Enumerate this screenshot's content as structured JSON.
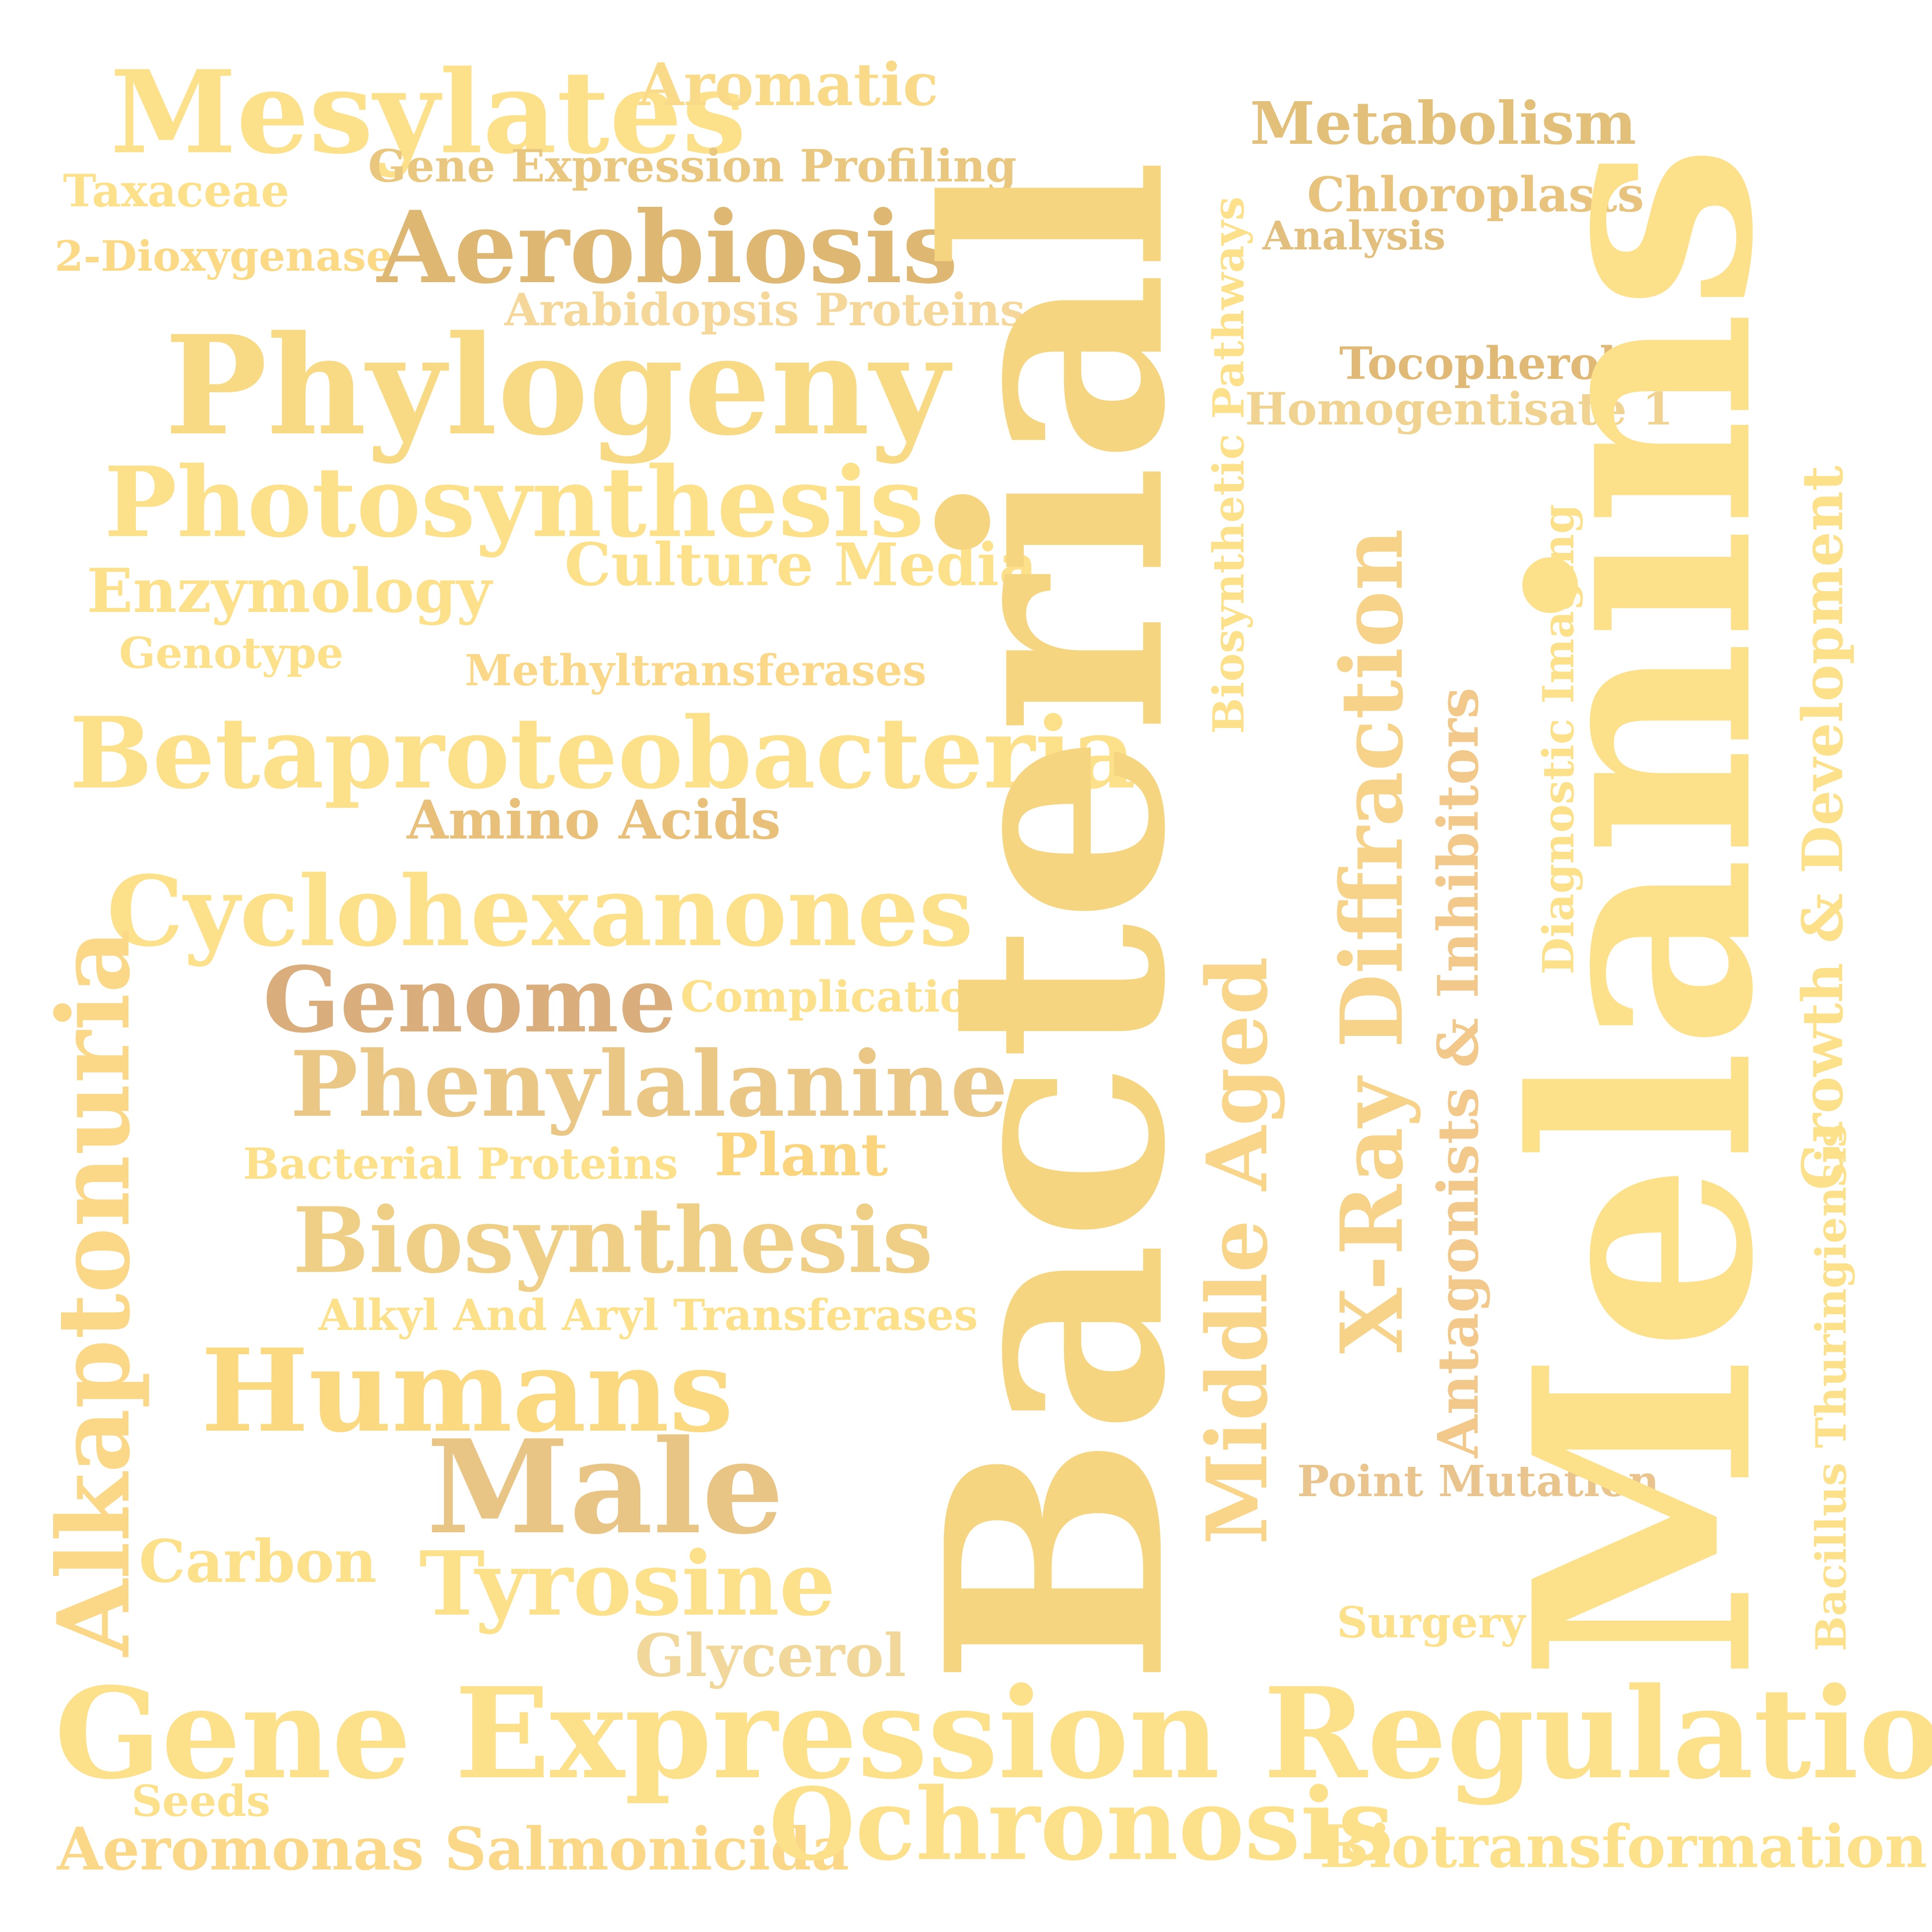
{
  "words": {
    "melanins": {
      "text": "Melanins",
      "color": "#fde08a"
    },
    "bacterial": {
      "text": "Bacterial",
      "color": "#f6d580"
    },
    "gene_expression_regulation": {
      "text": "Gene Expression Regulation",
      "color": "#fde08a"
    },
    "phylogeny": {
      "text": "Phylogeny",
      "color": "#f8da84"
    },
    "mesylates": {
      "text": "Mesylates",
      "color": "#fde08a"
    },
    "aromatic": {
      "text": "Aromatic",
      "color": "#f9da88"
    },
    "metabolism": {
      "text": "Metabolism",
      "color": "#e2c07a"
    },
    "gene_expression_profiling": {
      "text": "Gene Expression Profiling",
      "color": "#e9c77e"
    },
    "taxaceae": {
      "text": "Taxaceae",
      "color": "#fde08a"
    },
    "chloroplasts": {
      "text": "Chloroplasts",
      "color": "#e7c37e"
    },
    "analysis": {
      "text": "Analysis",
      "color": "#e2bf7c"
    },
    "dioxygenase": {
      "text": "2-Dioxygenase",
      "color": "#fbd985"
    },
    "aerobiosis": {
      "text": "Aerobiosis",
      "color": "#deb872"
    },
    "arabidopsis_proteins": {
      "text": "Arabidopsis Proteins",
      "color": "#f6d79a"
    },
    "tocopherols": {
      "text": "Tocopherols",
      "color": "#e0b976"
    },
    "homogentisate": {
      "text": "Homogentisate 1",
      "color": "#f0d390"
    },
    "biosynthetic_pathways": {
      "text": "Biosynthetic Pathways",
      "color": "#fde08a"
    },
    "photosynthesis": {
      "text": "Photosynthesis",
      "color": "#fde08a"
    },
    "culture_media": {
      "text": "Culture Media",
      "color": "#fde08a"
    },
    "enzymology": {
      "text": "Enzymology",
      "color": "#fde08a"
    },
    "genotype": {
      "text": "Genotype",
      "color": "#fde08a"
    },
    "methyltransferases": {
      "text": "Methyltransferases",
      "color": "#fad888"
    },
    "betaproteobacteria": {
      "text": "Betaproteobacteria",
      "color": "#fde08a"
    },
    "amino_acids": {
      "text": "Amino Acids",
      "color": "#e9c07a"
    },
    "cyclohexanones": {
      "text": "Cyclohexanones",
      "color": "#fde08a"
    },
    "genome": {
      "text": "Genome",
      "color": "#d9ad7c"
    },
    "complications": {
      "text": "Complications",
      "color": "#fde08a"
    },
    "phenylalanine": {
      "text": "Phenylalanine",
      "color": "#eac785"
    },
    "bacterial_proteins": {
      "text": "Bacterial Proteins",
      "color": "#fde08a"
    },
    "plant": {
      "text": "Plant",
      "color": "#fad57e"
    },
    "biosynthesis": {
      "text": "Biosynthesis",
      "color": "#efcf86"
    },
    "alkyl_aryl": {
      "text": "Alkyl And Aryl Transferases",
      "color": "#fde08a"
    },
    "humans": {
      "text": "Humans",
      "color": "#fbd980"
    },
    "male": {
      "text": "Male",
      "color": "#e8c585"
    },
    "carbon": {
      "text": "Carbon",
      "color": "#fde08a"
    },
    "tyrosine": {
      "text": "Tyrosine",
      "color": "#fde08a"
    },
    "glycerol": {
      "text": "Glycerol",
      "color": "#f1d79a"
    },
    "seeds": {
      "text": "Seeds",
      "color": "#fde08a"
    },
    "aeromonas": {
      "text": "Aeromonas Salmonicida",
      "color": "#fad888"
    },
    "ochronosis": {
      "text": "Ochronosis",
      "color": "#fde08a"
    },
    "biotransformation": {
      "text": "Biotransformation",
      "color": "#fde08a"
    },
    "alkaptonuria": {
      "text": "Alkaptonuria",
      "color": "#fad888"
    },
    "middle_aged": {
      "text": "Middle Aged",
      "color": "#f9d58a"
    },
    "xray": {
      "text": "X-Ray Diffraction",
      "color": "#f7d38a"
    },
    "antagonists": {
      "text": "Antagonists & Inhibitors",
      "color": "#f2c98a"
    },
    "diagnostic_imaging": {
      "text": "Diagnostic Imaging",
      "color": "#fde08a"
    },
    "growth_dev": {
      "text": "Growth & Development",
      "color": "#fde08a"
    },
    "bacillus": {
      "text": "Bacillus Thuringiensis",
      "color": "#fde08a"
    },
    "point_mutation": {
      "text": "Point Mutation",
      "color": "#e9c48c"
    },
    "surgery": {
      "text": "Surgery",
      "color": "#fde08a"
    }
  }
}
